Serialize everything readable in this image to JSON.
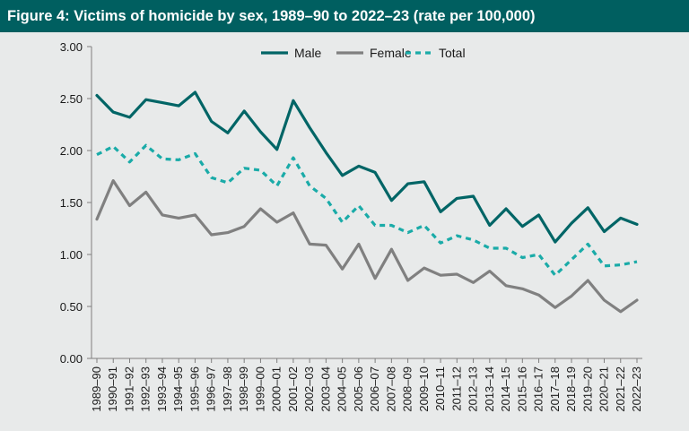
{
  "title": "Figure 4: Victims of homicide by sex, 1989–90 to 2022–23 (rate per 100,000)",
  "chart_data": {
    "type": "line",
    "title": "Figure 4: Victims of homicide by sex, 1989–90 to 2022–23 (rate per 100,000)",
    "xlabel": "",
    "ylabel": "",
    "ylim": [
      0,
      3
    ],
    "yticks": [
      "0.00",
      "0.50",
      "1.00",
      "1.50",
      "2.00",
      "2.50",
      "3.00"
    ],
    "grid": false,
    "legend_position": "top",
    "categories": [
      "1989–90",
      "1990–91",
      "1991–92",
      "1992–93",
      "1993–94",
      "1994–95",
      "1995–96",
      "1996–97",
      "1997–98",
      "1998–99",
      "1999–00",
      "2000–01",
      "2001–02",
      "2002–03",
      "2003–04",
      "2004–05",
      "2005–06",
      "2006–07",
      "2007–08",
      "2008–09",
      "2009–10",
      "2010–11",
      "2011–12",
      "2012–13",
      "2013–14",
      "2014–15",
      "2015–16",
      "2016–17",
      "2017–18",
      "2018–19",
      "2019–20",
      "2020–21",
      "2021–22",
      "2022–23"
    ],
    "series": [
      {
        "name": "Male",
        "color": "#006566",
        "dash": "solid",
        "values": [
          2.53,
          2.37,
          2.32,
          2.49,
          2.46,
          2.43,
          2.56,
          2.28,
          2.17,
          2.38,
          2.18,
          2.01,
          2.48,
          2.22,
          1.98,
          1.76,
          1.85,
          1.79,
          1.52,
          1.68,
          1.7,
          1.41,
          1.54,
          1.56,
          1.28,
          1.44,
          1.27,
          1.38,
          1.12,
          1.3,
          1.45,
          1.22,
          1.35,
          1.29
        ]
      },
      {
        "name": "Female",
        "color": "#808080",
        "dash": "solid",
        "values": [
          1.34,
          1.71,
          1.47,
          1.6,
          1.38,
          1.35,
          1.38,
          1.19,
          1.21,
          1.27,
          1.44,
          1.31,
          1.4,
          1.1,
          1.09,
          0.86,
          1.1,
          0.77,
          1.05,
          0.75,
          0.87,
          0.8,
          0.81,
          0.73,
          0.84,
          0.7,
          0.67,
          0.61,
          0.49,
          0.6,
          0.75,
          0.56,
          0.45,
          0.56
        ]
      },
      {
        "name": "Total",
        "color": "#1aaba8",
        "dash": "dashed",
        "values": [
          1.96,
          2.04,
          1.89,
          2.05,
          1.92,
          1.91,
          1.97,
          1.74,
          1.69,
          1.83,
          1.81,
          1.66,
          1.93,
          1.66,
          1.54,
          1.31,
          1.47,
          1.28,
          1.28,
          1.21,
          1.28,
          1.11,
          1.18,
          1.14,
          1.06,
          1.06,
          0.97,
          1.0,
          0.8,
          0.95,
          1.1,
          0.89,
          0.9,
          0.93
        ]
      }
    ]
  }
}
